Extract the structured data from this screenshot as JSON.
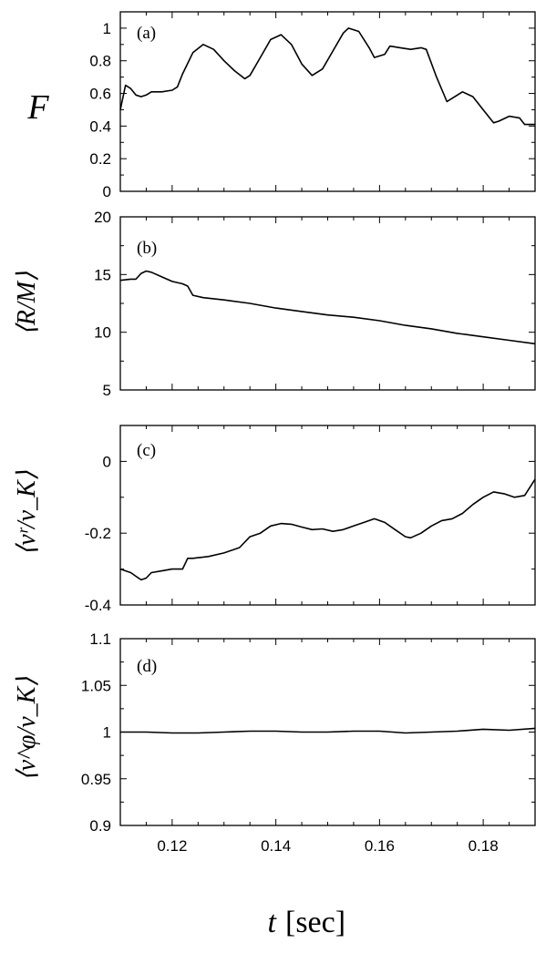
{
  "x_axis": {
    "variable": "t",
    "unit": "[sec]",
    "range": [
      0.11,
      0.19
    ],
    "ticks": [
      0.12,
      0.14,
      0.16,
      0.18
    ],
    "tick_labels": [
      "0.12",
      "0.14",
      "0.16",
      "0.18"
    ]
  },
  "chart_data": [
    {
      "type": "line",
      "panel_label": "(a)",
      "ylabel": "F",
      "ylim": [
        0,
        1.1
      ],
      "yticks": [
        0,
        0.2,
        0.4,
        0.6,
        0.8,
        1
      ],
      "ytick_labels": [
        "0",
        "0.2",
        "0.4",
        "0.6",
        "0.8",
        "1"
      ],
      "series": [
        {
          "x": [
            0.11,
            0.111,
            0.112,
            0.113,
            0.114,
            0.115,
            0.116,
            0.118,
            0.12,
            0.121,
            0.122,
            0.124,
            0.126,
            0.128,
            0.13,
            0.132,
            0.134,
            0.135,
            0.137,
            0.139,
            0.141,
            0.143,
            0.145,
            0.147,
            0.149,
            0.151,
            0.153,
            0.154,
            0.156,
            0.158,
            0.159,
            0.161,
            0.162,
            0.164,
            0.166,
            0.168,
            0.169,
            0.171,
            0.173,
            0.174,
            0.176,
            0.178,
            0.18,
            0.182,
            0.183,
            0.185,
            0.187,
            0.188,
            0.19
          ],
          "y": [
            0.5,
            0.65,
            0.63,
            0.59,
            0.58,
            0.59,
            0.61,
            0.61,
            0.62,
            0.64,
            0.72,
            0.85,
            0.9,
            0.87,
            0.8,
            0.74,
            0.69,
            0.71,
            0.82,
            0.93,
            0.96,
            0.9,
            0.78,
            0.71,
            0.75,
            0.86,
            0.97,
            1.0,
            0.98,
            0.88,
            0.82,
            0.84,
            0.89,
            0.88,
            0.87,
            0.88,
            0.87,
            0.7,
            0.55,
            0.57,
            0.61,
            0.58,
            0.5,
            0.42,
            0.43,
            0.46,
            0.45,
            0.41,
            0.41
          ]
        }
      ]
    },
    {
      "type": "line",
      "panel_label": "(b)",
      "ylabel": "⟨R/M⟩",
      "ylim": [
        5,
        20
      ],
      "yticks": [
        5,
        10,
        15,
        20
      ],
      "ytick_labels": [
        "5",
        "10",
        "15",
        "20"
      ],
      "series": [
        {
          "x": [
            0.11,
            0.112,
            0.113,
            0.114,
            0.115,
            0.116,
            0.118,
            0.12,
            0.122,
            0.123,
            0.124,
            0.126,
            0.13,
            0.135,
            0.14,
            0.145,
            0.15,
            0.155,
            0.16,
            0.165,
            0.17,
            0.175,
            0.18,
            0.185,
            0.19
          ],
          "y": [
            14.5,
            14.6,
            14.6,
            15.1,
            15.3,
            15.2,
            14.8,
            14.4,
            14.2,
            14.0,
            13.2,
            13.0,
            12.8,
            12.5,
            12.1,
            11.8,
            11.5,
            11.3,
            11.0,
            10.6,
            10.3,
            9.9,
            9.6,
            9.3,
            9.0
          ]
        }
      ]
    },
    {
      "type": "line",
      "panel_label": "(c)",
      "ylabel": "⟨vʳ/v_K⟩",
      "ylim": [
        -0.4,
        0.1
      ],
      "yticks": [
        -0.4,
        -0.2,
        0
      ],
      "ytick_labels": [
        "-0.4",
        "-0.2",
        "0"
      ],
      "series": [
        {
          "x": [
            0.11,
            0.112,
            0.113,
            0.114,
            0.115,
            0.116,
            0.118,
            0.12,
            0.122,
            0.123,
            0.124,
            0.127,
            0.13,
            0.133,
            0.135,
            0.137,
            0.139,
            0.141,
            0.143,
            0.145,
            0.147,
            0.149,
            0.151,
            0.153,
            0.155,
            0.157,
            0.159,
            0.161,
            0.163,
            0.165,
            0.166,
            0.168,
            0.17,
            0.172,
            0.174,
            0.176,
            0.178,
            0.18,
            0.182,
            0.184,
            0.186,
            0.188,
            0.19
          ],
          "y": [
            -0.3,
            -0.31,
            -0.32,
            -0.33,
            -0.325,
            -0.31,
            -0.305,
            -0.3,
            -0.3,
            -0.27,
            -0.27,
            -0.265,
            -0.255,
            -0.24,
            -0.21,
            -0.2,
            -0.18,
            -0.173,
            -0.175,
            -0.183,
            -0.19,
            -0.188,
            -0.195,
            -0.19,
            -0.18,
            -0.17,
            -0.16,
            -0.17,
            -0.19,
            -0.21,
            -0.213,
            -0.2,
            -0.18,
            -0.165,
            -0.16,
            -0.145,
            -0.12,
            -0.1,
            -0.085,
            -0.09,
            -0.1,
            -0.095,
            -0.05
          ]
        }
      ]
    },
    {
      "type": "line",
      "panel_label": "(d)",
      "ylabel": "⟨v^φ/v_K⟩",
      "ylim": [
        0.9,
        1.1
      ],
      "yticks": [
        0.9,
        0.95,
        1,
        1.05,
        1.1
      ],
      "ytick_labels": [
        "0.9",
        "0.95",
        "1",
        "1.05",
        "1.1"
      ],
      "series": [
        {
          "x": [
            0.11,
            0.115,
            0.12,
            0.125,
            0.13,
            0.135,
            0.14,
            0.145,
            0.15,
            0.155,
            0.16,
            0.165,
            0.17,
            0.175,
            0.18,
            0.185,
            0.19
          ],
          "y": [
            1.0,
            1.0,
            0.999,
            0.999,
            1.0,
            1.001,
            1.001,
            1.0,
            1.0,
            1.001,
            1.001,
            0.999,
            1.0,
            1.001,
            1.003,
            1.002,
            1.004
          ]
        }
      ]
    }
  ]
}
